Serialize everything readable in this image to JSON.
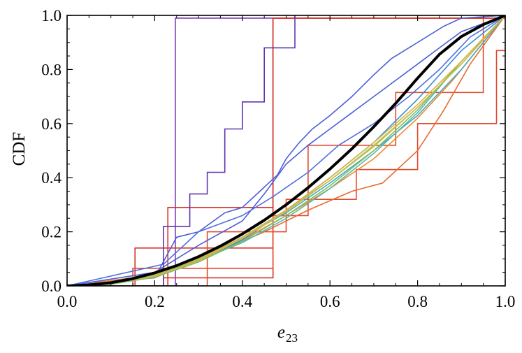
{
  "chart_data": {
    "type": "line",
    "xlabel": "e",
    "xlabel_subscript": "23",
    "ylabel": "CDF",
    "xlim": [
      0.0,
      1.0
    ],
    "ylim": [
      0.0,
      1.0
    ],
    "x_ticks": [
      "0.0",
      "0.2",
      "0.4",
      "0.6",
      "0.8",
      "1.0"
    ],
    "y_ticks": [
      "0.0",
      "0.2",
      "0.4",
      "0.6",
      "0.8",
      "1.0"
    ],
    "grid": false,
    "legend": "none",
    "reference_curve": {
      "color": "#000000",
      "x": [
        0.0,
        0.05,
        0.1,
        0.15,
        0.2,
        0.25,
        0.3,
        0.35,
        0.4,
        0.45,
        0.5,
        0.55,
        0.6,
        0.65,
        0.7,
        0.75,
        0.8,
        0.85,
        0.9,
        0.95,
        1.0
      ],
      "y": [
        0.0,
        0.003,
        0.012,
        0.027,
        0.048,
        0.075,
        0.108,
        0.147,
        0.192,
        0.243,
        0.3,
        0.363,
        0.432,
        0.507,
        0.588,
        0.675,
        0.768,
        0.856,
        0.922,
        0.966,
        1.0
      ]
    },
    "series": [
      {
        "color": "#7b3fb8",
        "x": [
          0.0,
          0.247,
          0.247,
          0.52,
          0.52
        ],
        "y": [
          0.0,
          0.0,
          0.99,
          0.99,
          1.0
        ]
      },
      {
        "color": "#d6352d",
        "x": [
          0.0,
          0.155,
          0.155,
          0.47,
          0.47,
          1.0
        ],
        "y": [
          0.0,
          0.0,
          0.14,
          0.14,
          0.99,
          0.99
        ]
      },
      {
        "color": "#d6352d",
        "x": [
          0.0,
          0.23,
          0.23,
          0.47,
          0.47,
          1.0
        ],
        "y": [
          0.0,
          0.0,
          0.29,
          0.29,
          0.99,
          0.99
        ]
      },
      {
        "color": "#d6352d",
        "x": [
          0.0,
          0.22,
          0.22,
          0.47,
          0.47,
          1.0
        ],
        "y": [
          0.0,
          0.0,
          0.03,
          0.03,
          0.99,
          0.99
        ]
      },
      {
        "color": "#e04a2c",
        "x": [
          0.0,
          0.15,
          0.15,
          0.47,
          0.47,
          0.55,
          0.55,
          0.75,
          0.75,
          0.95,
          0.95,
          1.0
        ],
        "y": [
          0.0,
          0.0,
          0.065,
          0.065,
          0.26,
          0.26,
          0.52,
          0.52,
          0.715,
          0.715,
          0.99,
          0.99
        ]
      },
      {
        "color": "#e04a2c",
        "x": [
          0.0,
          0.32,
          0.32,
          0.5,
          0.5,
          0.66,
          0.66,
          0.8,
          0.8,
          0.98,
          0.98,
          1.0
        ],
        "y": [
          0.0,
          0.0,
          0.2,
          0.2,
          0.32,
          0.32,
          0.43,
          0.43,
          0.6,
          0.6,
          0.87,
          0.87
        ]
      },
      {
        "color": "#e86a2e",
        "x": [
          0.0,
          0.2,
          0.35,
          0.45,
          0.55,
          0.65,
          0.72,
          0.8,
          0.86,
          0.92,
          1.0
        ],
        "y": [
          0.0,
          0.03,
          0.13,
          0.2,
          0.28,
          0.35,
          0.38,
          0.5,
          0.65,
          0.82,
          1.0
        ]
      },
      {
        "color": "#f08a30",
        "x": [
          0.0,
          0.2,
          0.3,
          0.4,
          0.5,
          0.6,
          0.7,
          0.8,
          0.88,
          0.95,
          1.0
        ],
        "y": [
          0.0,
          0.04,
          0.1,
          0.17,
          0.26,
          0.36,
          0.47,
          0.62,
          0.76,
          0.9,
          1.0
        ]
      },
      {
        "color": "#4b5fd8",
        "x": [
          0.0,
          0.2,
          0.25,
          0.3,
          0.36,
          0.4,
          0.44,
          0.46,
          0.48,
          0.5,
          0.53,
          0.56,
          0.6,
          0.65,
          0.7,
          0.74,
          0.78,
          0.82,
          0.86,
          0.9,
          1.0
        ],
        "y": [
          0.0,
          0.03,
          0.18,
          0.2,
          0.27,
          0.29,
          0.35,
          0.38,
          0.41,
          0.47,
          0.53,
          0.58,
          0.63,
          0.7,
          0.78,
          0.84,
          0.88,
          0.92,
          0.96,
          0.99,
          1.0
        ]
      },
      {
        "color": "#4b5fd8",
        "x": [
          0.0,
          0.2,
          0.3,
          0.4,
          0.45,
          0.5,
          0.55,
          0.6,
          0.65,
          0.7,
          0.75,
          0.8,
          0.85,
          0.9,
          1.0
        ],
        "y": [
          0.0,
          0.05,
          0.15,
          0.24,
          0.34,
          0.45,
          0.52,
          0.58,
          0.64,
          0.7,
          0.76,
          0.82,
          0.88,
          0.94,
          1.0
        ]
      },
      {
        "color": "#5170e0",
        "x": [
          0.0,
          0.22,
          0.3,
          0.4,
          0.47,
          0.55,
          0.62,
          0.7,
          0.78,
          0.85,
          0.92,
          1.0
        ],
        "y": [
          0.0,
          0.08,
          0.2,
          0.26,
          0.33,
          0.42,
          0.52,
          0.6,
          0.7,
          0.8,
          0.92,
          1.0
        ]
      },
      {
        "color": "#5d36b0",
        "x": [
          0.0,
          0.22,
          0.22,
          0.28,
          0.28,
          0.32,
          0.32,
          0.36,
          0.36,
          0.4,
          0.4,
          0.45,
          0.45,
          0.52,
          0.52
        ],
        "y": [
          0.0,
          0.0,
          0.22,
          0.22,
          0.34,
          0.34,
          0.42,
          0.42,
          0.58,
          0.58,
          0.68,
          0.68,
          0.88,
          0.88,
          1.0
        ]
      },
      {
        "color": "#3a8bd4",
        "x": [
          0.0,
          0.1,
          0.2,
          0.3,
          0.4,
          0.5,
          0.6,
          0.7,
          0.8,
          0.9,
          1.0
        ],
        "y": [
          0.0,
          0.01,
          0.035,
          0.09,
          0.17,
          0.28,
          0.4,
          0.53,
          0.69,
          0.87,
          1.0
        ]
      },
      {
        "color": "#43a8c8",
        "x": [
          0.0,
          0.1,
          0.2,
          0.3,
          0.4,
          0.5,
          0.6,
          0.7,
          0.8,
          0.9,
          1.0
        ],
        "y": [
          0.0,
          0.012,
          0.045,
          0.1,
          0.18,
          0.27,
          0.38,
          0.5,
          0.63,
          0.8,
          1.0
        ]
      },
      {
        "color": "#58b8a8",
        "x": [
          0.0,
          0.1,
          0.2,
          0.3,
          0.4,
          0.5,
          0.6,
          0.7,
          0.8,
          0.9,
          1.0
        ],
        "y": [
          0.0,
          0.008,
          0.038,
          0.095,
          0.16,
          0.25,
          0.36,
          0.49,
          0.64,
          0.83,
          1.0
        ]
      },
      {
        "color": "#7fbf68",
        "x": [
          0.0,
          0.1,
          0.2,
          0.3,
          0.4,
          0.5,
          0.6,
          0.7,
          0.8,
          0.9,
          1.0
        ],
        "y": [
          0.0,
          0.006,
          0.032,
          0.088,
          0.165,
          0.26,
          0.37,
          0.5,
          0.65,
          0.83,
          1.0
        ]
      },
      {
        "color": "#a3c45a",
        "x": [
          0.0,
          0.1,
          0.2,
          0.3,
          0.4,
          0.5,
          0.6,
          0.7,
          0.8,
          0.9,
          1.0
        ],
        "y": [
          0.0,
          0.01,
          0.04,
          0.1,
          0.18,
          0.28,
          0.39,
          0.52,
          0.66,
          0.82,
          1.0
        ]
      },
      {
        "color": "#c9bd4a",
        "x": [
          0.0,
          0.1,
          0.2,
          0.3,
          0.4,
          0.5,
          0.6,
          0.7,
          0.8,
          0.9,
          1.0
        ],
        "y": [
          0.0,
          0.009,
          0.036,
          0.092,
          0.175,
          0.275,
          0.39,
          0.515,
          0.66,
          0.82,
          1.0
        ]
      },
      {
        "color": "#dcb043",
        "x": [
          0.0,
          0.1,
          0.2,
          0.3,
          0.4,
          0.5,
          0.6,
          0.7,
          0.8,
          0.9,
          1.0
        ],
        "y": [
          0.0,
          0.011,
          0.042,
          0.098,
          0.178,
          0.28,
          0.4,
          0.53,
          0.67,
          0.83,
          1.0
        ]
      }
    ]
  }
}
